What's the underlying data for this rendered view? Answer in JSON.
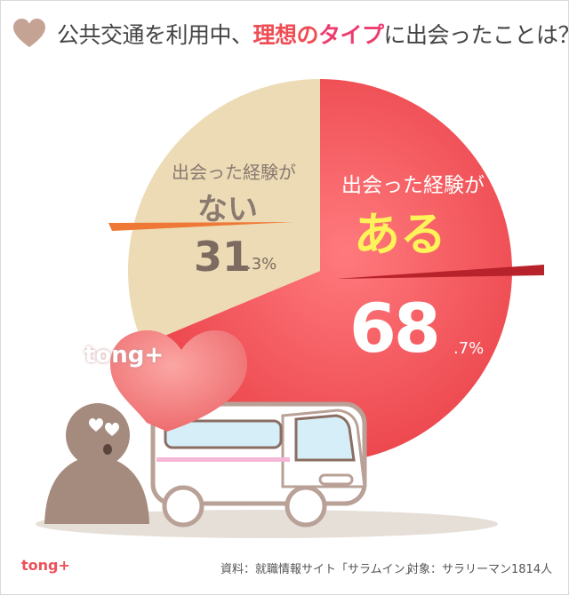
{
  "header": {
    "title_pre": "公共交通を利用中、",
    "title_hl1": "理想の",
    "title_hl2": "タイプ",
    "title_post": "に出会ったことは？"
  },
  "chart_data": {
    "type": "pie",
    "title": "公共交通を利用中、理想のタイプに出会ったことは？",
    "slices": [
      {
        "label_line1": "出会った経験が",
        "label_line2": "ある",
        "value": 68.7,
        "value_int": "68",
        "value_dec": ".7%",
        "color": "#f75a5f"
      },
      {
        "label_line1": "出会った経験が",
        "label_line2": "ない",
        "value": 31.3,
        "value_int": "31",
        "value_dec": ".3%",
        "color": "#ecdbb5"
      }
    ]
  },
  "watermark": {
    "text": "tong+"
  },
  "footer": {
    "logo": "tong+",
    "source": "資料：就職情報サイト「サラムイン」",
    "target": "対象：サラリーマン1814人"
  },
  "colors": {
    "accent_red": "#ef4d54",
    "accent_pink": "#ee3c6f",
    "yes_slice": "#f75a5f",
    "no_slice": "#ecdbb5",
    "heart": "#f17c7e",
    "person": "#a58b7e"
  }
}
